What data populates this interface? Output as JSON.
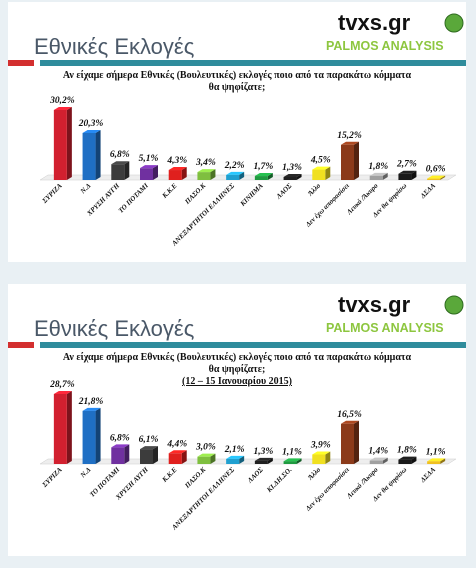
{
  "header": {
    "title": "Εθνικές Εκλογές",
    "logo": "tvxs.gr",
    "brand": "PALMOS ANALYSIS"
  },
  "chart_data": [
    {
      "type": "bar",
      "title": "Αν είχαμε σήμερα Εθνικές (Βουλευτικές) εκλογές ποιο από τα παρακάτω κόμματα θα ψηφίζατε;",
      "categories": [
        "ΣΥΡΙΖΑ",
        "Ν.Δ",
        "ΧΡΥΣΗ ΑΥΓΗ",
        "ΤΟ ΠΟΤΑΜΙ",
        "Κ.Κ.Ε",
        "ΠΑΣΟ.Κ",
        "ΑΝΕΞΑΡΤΗΤΟΙ ΕΛΛΗΝΕΣ",
        "ΚΙΝΗΜΑ",
        "ΛΑΟΣ",
        "Άλλο",
        "Δεν έχω αποφασίσει",
        "Λευκό /Άκυρο",
        "Δεν θα ψηφίσω",
        "ΔΣΔΑ"
      ],
      "values": [
        30.2,
        20.3,
        6.8,
        5.1,
        4.3,
        3.4,
        2.2,
        1.7,
        1.3,
        4.5,
        15.2,
        1.8,
        2.7,
        0.6
      ],
      "value_labels": [
        "30,2%",
        "20,3%",
        "6,8%",
        "5,1%",
        "4,3%",
        "3,4%",
        "2,2%",
        "1,7%",
        "1,3%",
        "4,5%",
        "15,2%",
        "1,8%",
        "2,7%",
        "0,6%"
      ],
      "colors": [
        "#d2202f",
        "#1f6fc4",
        "#3c3c3c",
        "#7030a0",
        "#e0201e",
        "#7fbf3f",
        "#20a0d0",
        "#1f9a40",
        "#202020",
        "#f0e020",
        "#8b3a1a",
        "#a0a0a0",
        "#1a1a1a",
        "#f0c020"
      ]
    },
    {
      "type": "bar",
      "title": "Αν είχαμε σήμερα Εθνικές (Βουλευτικές) εκλογές ποιο από τα παρακάτω κόμματα θα ψηφίζατε;",
      "subtitle": "(12 – 15 Ιανουαρίου 2015)",
      "categories": [
        "ΣΥΡΙΖΑ",
        "Ν.Δ",
        "ΤΟ ΠΟΤΑΜΙ",
        "ΧΡΥΣΗ ΑΥΓΗ",
        "Κ.Κ.Ε",
        "ΠΑΣΟ.Κ",
        "ΑΝΕΞΑΡΤΗΤΟΙ ΕΛΛΗΝΕΣ",
        "ΛΑΟΣ",
        "ΚΙ.ΔΗ.ΣΟ.",
        "Άλλο",
        "Δεν έχω αποφασίσει",
        "Λευκό /Άκυρο",
        "Δεν θα ψηφίσω",
        "ΔΣΔΑ"
      ],
      "values": [
        28.7,
        21.8,
        6.8,
        6.1,
        4.4,
        3.0,
        2.1,
        1.3,
        1.1,
        3.9,
        16.5,
        1.4,
        1.8,
        1.1
      ],
      "value_labels": [
        "28,7%",
        "21,8%",
        "6,8%",
        "6,1%",
        "4,4%",
        "3,0%",
        "2,1%",
        "1,3%",
        "1,1%",
        "3,9%",
        "16,5%",
        "1,4%",
        "1,8%",
        "1,1%"
      ],
      "colors": [
        "#d2202f",
        "#1f6fc4",
        "#7030a0",
        "#3c3c3c",
        "#e0201e",
        "#7fbf3f",
        "#20a0d0",
        "#202020",
        "#1f9a40",
        "#f0e020",
        "#8b3a1a",
        "#a0a0a0",
        "#1a1a1a",
        "#f0c020"
      ]
    }
  ]
}
